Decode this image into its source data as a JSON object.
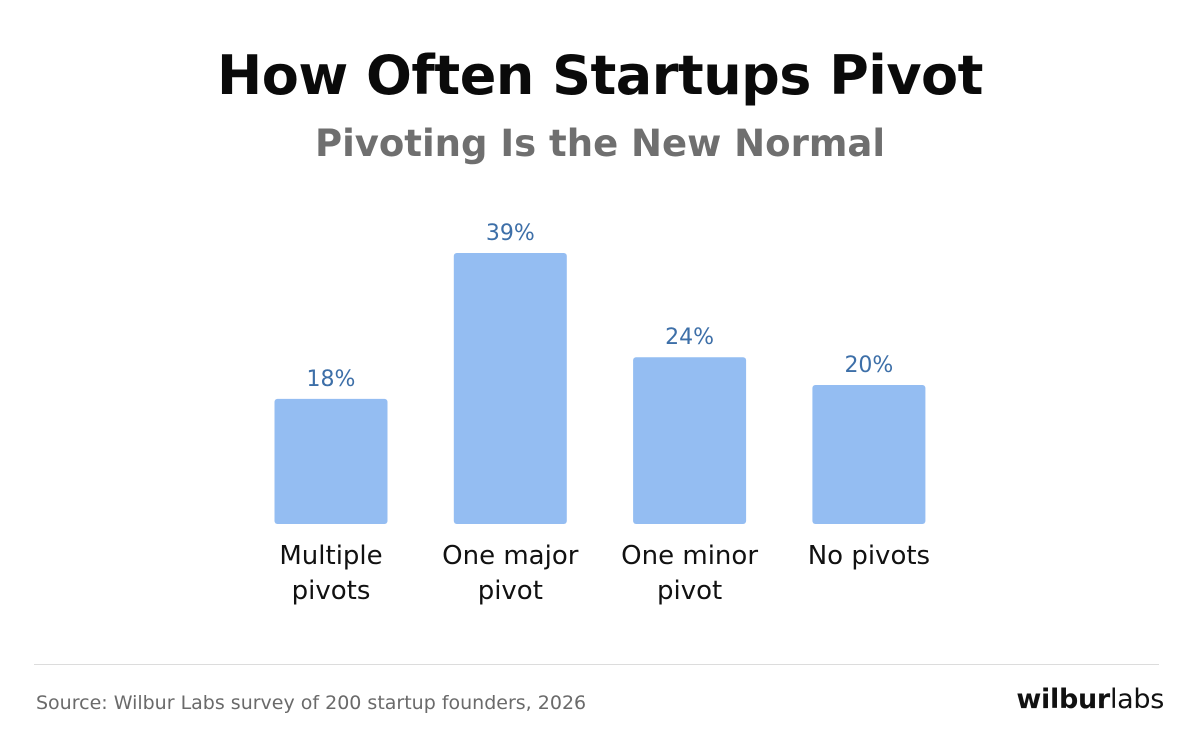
{
  "header": {
    "title": "How Often Startups Pivot",
    "subtitle": "Pivoting Is the New Normal"
  },
  "footer": {
    "source": "Source: Wilbur Labs survey of 200 startup founders, 2026",
    "brand_bold": "wilbur",
    "brand_light": "labs"
  },
  "colors": {
    "bar": "#94bdf2",
    "value_label": "#3d6fa8",
    "category_label": "#111111"
  },
  "chart_data": {
    "type": "bar",
    "title": "How Often Startups Pivot",
    "subtitle": "Pivoting Is the New Normal",
    "categories": [
      [
        "Multiple",
        "pivots"
      ],
      [
        "One major",
        "pivot"
      ],
      [
        "One minor",
        "pivot"
      ],
      [
        "No pivots"
      ]
    ],
    "values": [
      18,
      39,
      24,
      20
    ],
    "value_labels": [
      "18%",
      "39%",
      "24%",
      "20%"
    ],
    "unit": "%",
    "ylim": [
      0,
      40
    ],
    "grid": false,
    "legend": "none"
  }
}
